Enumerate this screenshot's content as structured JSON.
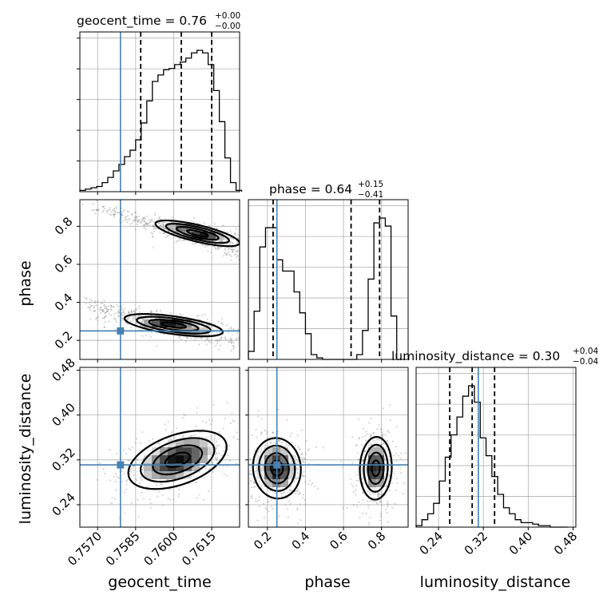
{
  "chart_data": {
    "type": "corner",
    "parameters": [
      "geocent_time",
      "phase",
      "luminosity_distance"
    ],
    "truths": {
      "geocent_time": 0.7579,
      "phase": 0.25,
      "luminosity_distance": 0.311
    },
    "titles": {
      "geocent_time": {
        "text": "geocent_time = 0.76",
        "plus": "+0.00",
        "minus": "−0.00"
      },
      "phase": {
        "text": "phase = 0.64",
        "plus": "+0.15",
        "minus": "−0.41"
      },
      "luminosity_distance": {
        "text": "luminosity_distance = 0.30",
        "plus": "+0.04",
        "minus": "−0.04"
      }
    },
    "axes": {
      "geocent_time": {
        "range": [
          0.7563,
          0.7626
        ],
        "ticks": [
          "0.7570",
          "0.7585",
          "0.7600",
          "0.7615"
        ],
        "tick_values": [
          0.757,
          0.7585,
          0.76,
          0.7615
        ],
        "label": "geocent_time"
      },
      "phase": {
        "range": [
          0.1,
          0.94
        ],
        "ticks": [
          "0.2",
          "0.4",
          "0.6",
          "0.8"
        ],
        "tick_values": [
          0.2,
          0.4,
          0.6,
          0.8
        ],
        "label": "phase"
      },
      "luminosity_distance": {
        "range": [
          0.2,
          0.485
        ],
        "ticks": [
          "0.24",
          "0.32",
          "0.40",
          "0.48"
        ],
        "tick_values": [
          0.24,
          0.32,
          0.4,
          0.48
        ],
        "label": "luminosity_distance"
      }
    },
    "quantiles": {
      "geocent_time": [
        0.7587,
        0.7603,
        0.7615
      ],
      "phase": [
        0.23,
        0.64,
        0.79
      ],
      "luminosity_distance": [
        0.26,
        0.3,
        0.34
      ]
    },
    "hist_1d": {
      "geocent_time": {
        "edges": [
          0.7563,
          0.75652,
          0.75674,
          0.75696,
          0.75718,
          0.7574,
          0.75762,
          0.75784,
          0.75806,
          0.75828,
          0.7585,
          0.75872,
          0.75894,
          0.75916,
          0.75938,
          0.7596,
          0.75982,
          0.76004,
          0.76026,
          0.76048,
          0.7607,
          0.76092,
          0.76114,
          0.76136,
          0.76158,
          0.7618,
          0.76202,
          0.76224,
          0.76246,
          0.76268
        ],
        "counts": [
          1,
          2,
          3,
          4,
          7,
          11,
          16,
          21,
          27,
          32,
          40,
          53,
          70,
          85,
          90,
          94,
          95,
          98,
          100,
          103,
          107,
          109,
          107,
          98,
          78,
          54,
          26,
          7,
          1
        ]
      },
      "phase": {
        "edges": [
          0.1,
          0.13,
          0.16,
          0.19,
          0.22,
          0.25,
          0.28,
          0.31,
          0.34,
          0.37,
          0.4,
          0.43,
          0.46,
          0.49,
          0.52,
          0.55,
          0.58,
          0.61,
          0.64,
          0.67,
          0.7,
          0.73,
          0.76,
          0.79,
          0.82,
          0.85,
          0.88
        ],
        "counts": [
          5,
          30,
          70,
          82,
          82,
          62,
          55,
          55,
          42,
          29,
          16,
          3,
          1,
          0,
          0,
          0,
          0,
          0,
          0,
          3,
          18,
          50,
          85,
          88,
          83,
          27
        ]
      },
      "luminosity_distance": {
        "edges": [
          0.2,
          0.2104,
          0.2208,
          0.2312,
          0.2416,
          0.252,
          0.2624,
          0.2728,
          0.2832,
          0.2936,
          0.304,
          0.3144,
          0.3248,
          0.3352,
          0.3456,
          0.356,
          0.3664,
          0.3768,
          0.3872,
          0.3976,
          0.408,
          0.4184,
          0.4288,
          0.4392,
          0.4496,
          0.46,
          0.4704
        ],
        "counts": [
          1,
          5,
          9,
          16,
          31,
          47,
          62,
          74,
          88,
          95,
          84,
          60,
          48,
          34,
          22,
          13,
          9,
          5,
          3,
          3,
          2,
          1,
          1,
          0,
          0,
          0
        ]
      }
    },
    "hist_2d": {
      "phase_vs_geocent_time": {
        "blobs": [
          {
            "x": 0.76094,
            "y": 0.763,
            "sx": 0.00083,
            "sy": 0.0338,
            "rho": -0.75
          },
          {
            "x": 0.76,
            "y": 0.28,
            "sx": 0.00097,
            "sy": 0.0294,
            "rho": -0.6
          }
        ],
        "scatter_bands": [
          {
            "x_range": [
              0.75675,
              0.76258
            ],
            "y_start": 0.91,
            "y_end": 0.66,
            "spread": 0.04
          },
          {
            "x_range": [
              0.75645,
              0.7624
            ],
            "y_start": 0.4,
            "y_end": 0.18,
            "spread": 0.04
          }
        ]
      },
      "luminosity_distance_vs_geocent_time": {
        "blobs": [
          {
            "x": 0.76015,
            "y": 0.32,
            "sx": 0.00097,
            "sy": 0.026,
            "rho": 0.45
          }
        ]
      },
      "luminosity_distance_vs_phase": {
        "blobs": [
          {
            "x": 0.25,
            "y": 0.305,
            "sx": 0.063,
            "sy": 0.027,
            "rho": -0.05
          },
          {
            "x": 0.77,
            "y": 0.305,
            "sx": 0.042,
            "sy": 0.028,
            "rho": 0.05
          }
        ]
      }
    },
    "grid": true,
    "line_color": "#000000",
    "truth_color": "#4682b4"
  }
}
